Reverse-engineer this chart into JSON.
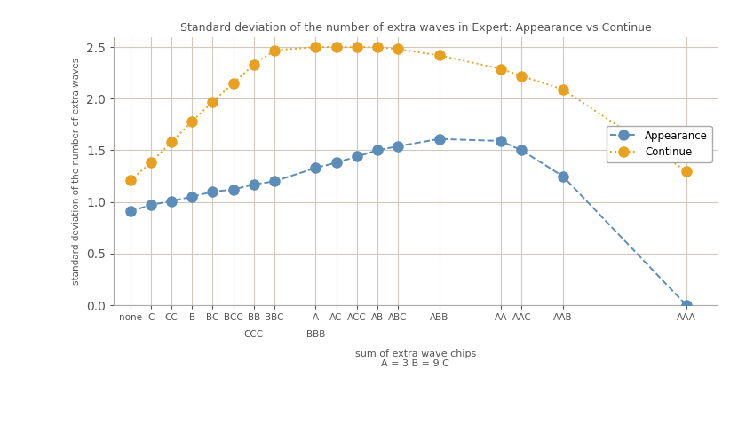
{
  "title": "Standard deviation of the number of extra waves in Expert: Appearance vs Continue",
  "xlabel_line1": "sum of extra wave chips",
  "xlabel_line2": "A = 3 B = 9 C",
  "ylabel": "standard deviation of the number of extra waves",
  "appearance_y": [
    0.91,
    0.97,
    1.01,
    1.05,
    1.1,
    1.12,
    1.17,
    1.2,
    1.33,
    1.38,
    1.44,
    1.5,
    1.54,
    1.61,
    1.59,
    1.5,
    1.25,
    0.0
  ],
  "continue_y": [
    1.21,
    1.38,
    1.58,
    1.78,
    1.97,
    2.15,
    2.33,
    2.47,
    2.5,
    2.5,
    2.5,
    2.5,
    2.48,
    2.42,
    2.29,
    2.22,
    2.09,
    1.3
  ],
  "main_labels": [
    "none",
    "C",
    "CC",
    "B",
    "BC",
    "BCC",
    "BB",
    "BBC",
    "A",
    "AC",
    "ACC",
    "AB",
    "ABC",
    "ABB",
    "AA",
    "AAC",
    "AAB",
    "AAA"
  ],
  "main_indices": [
    0,
    1,
    2,
    3,
    4,
    5,
    6,
    7,
    9,
    10,
    11,
    12,
    13,
    15,
    18,
    19,
    21,
    27
  ],
  "ccc_index": 6,
  "bbb_index": 9,
  "appearance_color": "#5b8db8",
  "continue_color": "#e8a020",
  "background_color": "#ffffff",
  "grid_color": "#d0c8b8",
  "ylim": [
    0,
    2.6
  ],
  "yticks": [
    0.0,
    0.5,
    1.0,
    1.5,
    2.0,
    2.5
  ],
  "legend_appearance": "Appearance",
  "legend_continue": "Continue",
  "title_color": "#555555",
  "label_color": "#555555"
}
